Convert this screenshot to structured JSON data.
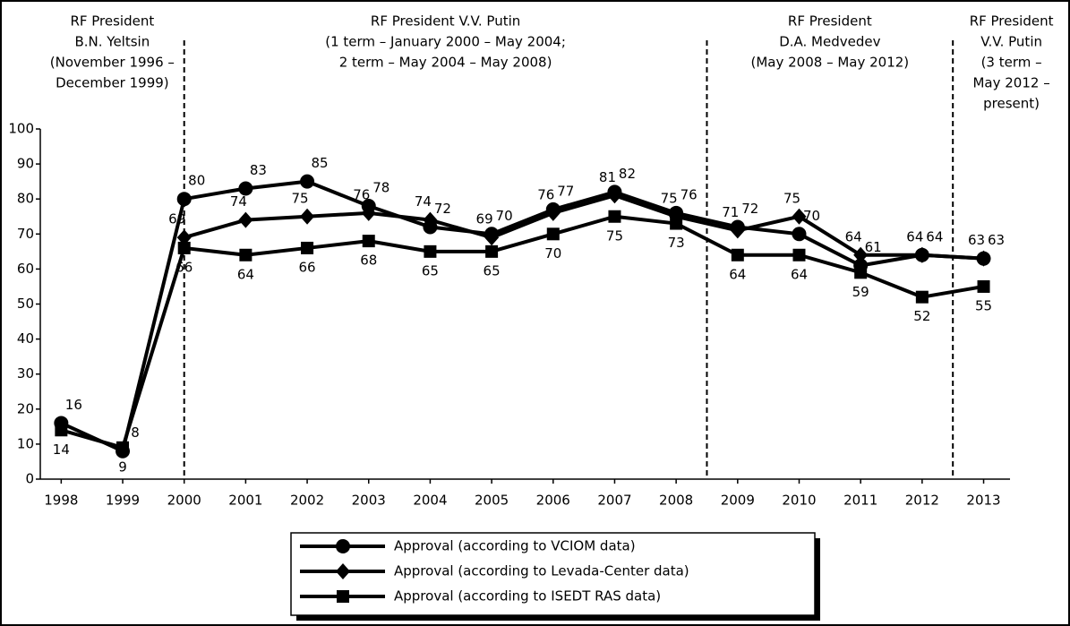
{
  "chart_data": {
    "type": "line",
    "x": [
      1998,
      1999,
      2000,
      2001,
      2002,
      2003,
      2004,
      2005,
      2006,
      2007,
      2008,
      2009,
      2010,
      2011,
      2012,
      2013
    ],
    "xlim": [
      1997.66,
      2013.4
    ],
    "ylim": [
      0,
      100
    ],
    "yticks": [
      0,
      10,
      20,
      30,
      40,
      50,
      60,
      70,
      80,
      90,
      100
    ],
    "series": [
      {
        "name": "Approval (according to VCIOM data)",
        "color": "#000000",
        "marker": "circle",
        "values": [
          16,
          8,
          80,
          83,
          85,
          78,
          72,
          70,
          77,
          82,
          76,
          72,
          70,
          61,
          64,
          63
        ]
      },
      {
        "name": "Approval (according to Levada-Center data)",
        "color": "#000000",
        "marker": "diamond",
        "values": [
          null,
          null,
          69,
          74,
          75,
          76,
          74,
          69,
          76,
          81,
          75,
          71,
          75,
          64,
          64,
          63
        ]
      },
      {
        "name": "Approval (according to ISEDT RAS data)",
        "color": "#000000",
        "marker": "square",
        "values": [
          14,
          9,
          66,
          64,
          66,
          68,
          65,
          65,
          70,
          75,
          73,
          64,
          64,
          59,
          52,
          55
        ]
      }
    ],
    "dividers": [
      2000,
      2008.5,
      2012.5
    ],
    "annotations": [
      [
        "RF President",
        "B.N. Yeltsin",
        "(November 1996 –",
        "December 1999)"
      ],
      [
        "RF President V.V. Putin",
        "(1 term – January 2000  – May 2004;",
        "2 term –  May 2004 – May 2008)"
      ],
      [
        "RF President",
        "D.A. Medvedev",
        "(May 2008  – May 2012)"
      ],
      [
        "RF President",
        "V.V. Putin",
        "(3 term –",
        "May 2012  –",
        "present)"
      ]
    ]
  }
}
